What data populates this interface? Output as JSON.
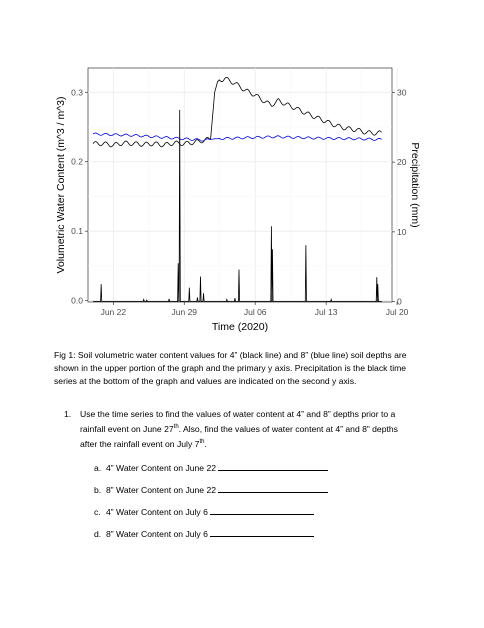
{
  "chart_data": {
    "type": "line",
    "title": "",
    "xlabel": "Time (2020)",
    "ylabel_left": "Volumetric Water Content (m^3 / m^3)",
    "ylabel_right": "Precipitation (mm)",
    "x_ticks": [
      "Jun 22",
      "Jun 29",
      "Jul 06",
      "Jul 13",
      "Jul 20"
    ],
    "x_tick_days": [
      22,
      29,
      36,
      43,
      50
    ],
    "x_range_days": [
      19.5,
      49.5
    ],
    "y_left_ticks": [
      "0.0",
      "0.1",
      "0.2",
      "0.3"
    ],
    "y_left_range": [
      -0.002,
      0.335
    ],
    "y_right_ticks": [
      "0",
      "10",
      "20",
      "30"
    ],
    "y_right_range": [
      -0.06,
      33.5
    ],
    "grid": true,
    "legend": "none",
    "series": [
      {
        "name": "",
        "color": "#000000",
        "axis": "left",
        "points": [
          [
            20.0,
            0.226
          ],
          [
            21.0,
            0.226
          ],
          [
            22.0,
            0.224
          ],
          [
            23.0,
            0.227
          ],
          [
            24.0,
            0.226
          ],
          [
            25.0,
            0.225
          ],
          [
            26.0,
            0.226
          ],
          [
            27.0,
            0.224
          ],
          [
            28.0,
            0.227
          ],
          [
            29.0,
            0.226
          ],
          [
            30.0,
            0.228
          ],
          [
            31.0,
            0.231
          ],
          [
            31.6,
            0.233
          ],
          [
            32.0,
            0.3
          ],
          [
            32.3,
            0.316
          ],
          [
            33.0,
            0.32
          ],
          [
            34.0,
            0.313
          ],
          [
            35.0,
            0.303
          ],
          [
            36.0,
            0.296
          ],
          [
            37.0,
            0.286
          ],
          [
            37.6,
            0.282
          ],
          [
            38.0,
            0.285
          ],
          [
            38.3,
            0.288
          ],
          [
            39.0,
            0.283
          ],
          [
            40.0,
            0.277
          ],
          [
            41.0,
            0.27
          ],
          [
            42.0,
            0.264
          ],
          [
            43.0,
            0.258
          ],
          [
            44.0,
            0.252
          ],
          [
            45.0,
            0.248
          ],
          [
            46.0,
            0.246
          ],
          [
            47.0,
            0.242
          ],
          [
            48.0,
            0.241
          ],
          [
            48.5,
            0.242
          ]
        ],
        "wiggle_amplitude": 0.003,
        "wiggle_period_days": 1.0
      },
      {
        "name": "",
        "color": "#0000cc",
        "axis": "left",
        "points": [
          [
            20.0,
            0.24
          ],
          [
            24.0,
            0.238
          ],
          [
            28.0,
            0.234
          ],
          [
            30.0,
            0.232
          ],
          [
            31.0,
            0.231
          ],
          [
            32.0,
            0.233
          ],
          [
            34.0,
            0.234
          ],
          [
            38.0,
            0.236
          ],
          [
            42.0,
            0.234
          ],
          [
            46.0,
            0.233
          ],
          [
            48.5,
            0.232
          ]
        ],
        "wiggle_amplitude": 0.0015,
        "wiggle_period_days": 1.0
      },
      {
        "name": "",
        "color": "#000000",
        "axis": "right",
        "kind": "spikes",
        "baseline_end": 48.5,
        "events": [
          [
            20.8,
            2.5
          ],
          [
            25.0,
            0.3
          ],
          [
            25.3,
            0.2
          ],
          [
            27.5,
            0.4
          ],
          [
            28.4,
            5.5
          ],
          [
            28.55,
            27.5
          ],
          [
            29.5,
            2.0
          ],
          [
            30.3,
            0.6
          ],
          [
            30.6,
            3.6
          ],
          [
            30.9,
            1.2
          ],
          [
            33.2,
            0.3
          ],
          [
            34.0,
            0.5
          ],
          [
            34.4,
            4.6
          ],
          [
            37.6,
            10.8
          ],
          [
            37.7,
            7.5
          ],
          [
            41.0,
            8.1
          ],
          [
            43.5,
            0.3
          ],
          [
            48.0,
            3.5
          ],
          [
            48.1,
            2.5
          ]
        ]
      }
    ]
  },
  "caption": {
    "prefix": "Fig 1: ",
    "line1": "Soil volumetric water content values for 4” (black line) and 8” (blue line) soil depths are",
    "line2": "shown in the upper portion of the graph and the primary y axis. Precipitation is the black time",
    "line3": "series at the bottom of the graph and values are indicated on the second y axis."
  },
  "question": {
    "number": "1.",
    "line1": "Use the time series to find the values of water content at 4” and 8” depths prior to a",
    "line2_a": "rainfall event on June 27",
    "line2_sup": "th",
    "line2_b": ". Also, find the values of water content at 4” and 8” depths",
    "line3_a": "after the rainfall event on July 7",
    "line3_sup": "th",
    "line3_b": "."
  },
  "items": [
    {
      "letter": "a.",
      "text": "4” Water Content on June 22"
    },
    {
      "letter": "b.",
      "text": "8” Water Content on June 22"
    },
    {
      "letter": "c.",
      "text": "4” Water Content on July 6"
    },
    {
      "letter": "d.",
      "text": "8” Water Content on July 6"
    }
  ]
}
